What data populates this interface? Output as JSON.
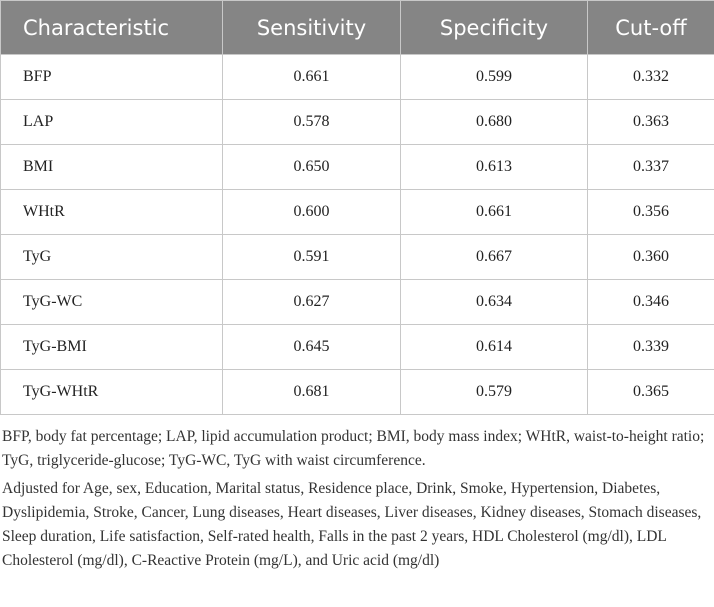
{
  "table": {
    "header": [
      "Characteristic",
      "Sensitivity",
      "Specificity",
      "Cut-off"
    ],
    "rows": [
      [
        "BFP",
        "0.661",
        "0.599",
        "0.332"
      ],
      [
        "LAP",
        "0.578",
        "0.680",
        "0.363"
      ],
      [
        "BMI",
        "0.650",
        "0.613",
        "0.337"
      ],
      [
        "WHtR",
        "0.600",
        "0.661",
        "0.356"
      ],
      [
        "TyG",
        "0.591",
        "0.667",
        "0.360"
      ],
      [
        "TyG-WC",
        "0.627",
        "0.634",
        "0.346"
      ],
      [
        "TyG-BMI",
        "0.645",
        "0.614",
        "0.339"
      ],
      [
        "TyG-WHtR",
        "0.681",
        "0.579",
        "0.365"
      ]
    ]
  },
  "notes": [
    "BFP, body fat percentage; LAP, lipid accumulation product; BMI, body mass index; WHtR, waist-to-height ratio; TyG, triglyceride-glucose; TyG-WC, TyG with waist circumference.",
    "Adjusted for Age, sex, Education, Marital status, Residence place, Drink, Smoke, Hypertension, Diabetes, Dyslipidemia, Stroke, Cancer, Lung diseases, Heart diseases, Liver diseases, Kidney diseases, Stomach diseases, Sleep duration, Life satisfaction, Self-rated health, Falls in the past 2 years, HDL Cholesterol (mg/dl), LDL Cholesterol (mg/dl), C-Reactive Protein (mg/L), and Uric acid (mg/dl)"
  ]
}
